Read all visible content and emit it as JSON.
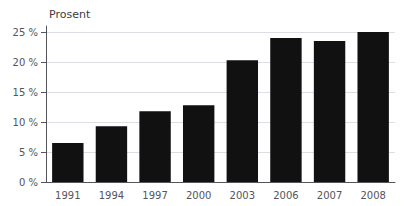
{
  "chart_data": {
    "type": "bar",
    "annotation": "Prosent",
    "categories": [
      "1991",
      "1994",
      "1997",
      "2000",
      "2003",
      "2006",
      "2007",
      "2008"
    ],
    "values": [
      6.5,
      9.3,
      11.8,
      12.8,
      20.3,
      24.0,
      23.5,
      25.0
    ],
    "color": "#111111",
    "ylim": [
      0,
      26
    ],
    "yticks": [
      {
        "value": 0,
        "label": "0 %"
      },
      {
        "value": 5,
        "label": "5 %"
      },
      {
        "value": 10,
        "label": "10 %"
      },
      {
        "value": 15,
        "label": "15 %"
      },
      {
        "value": 20,
        "label": "20 %"
      },
      {
        "value": 25,
        "label": "25 %"
      }
    ],
    "grid": true
  }
}
